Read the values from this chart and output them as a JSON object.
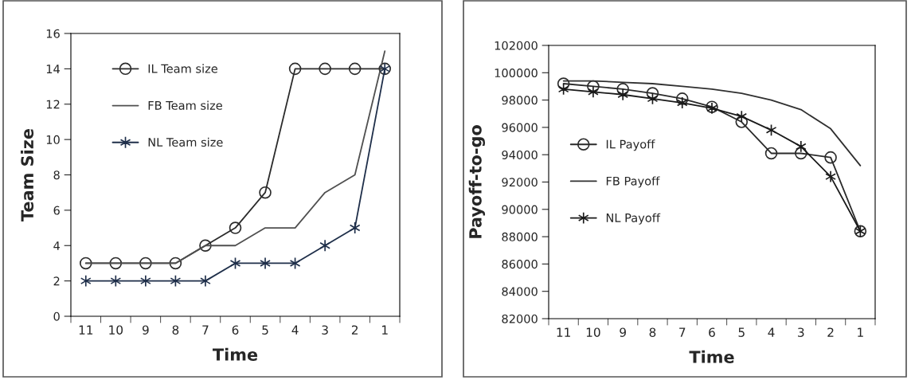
{
  "chart_data": [
    {
      "type": "line",
      "xlabel": "Time",
      "ylabel": "Team Size",
      "categories": [
        "11",
        "10",
        "9",
        "8",
        "7",
        "6",
        "5",
        "4",
        "3",
        "2",
        "1"
      ],
      "ylim": [
        0,
        16
      ],
      "yticks": [
        0,
        2,
        4,
        6,
        8,
        10,
        12,
        14,
        16
      ],
      "grid": false,
      "legend": "top left",
      "series": [
        {
          "name": "IL Team size",
          "color": "#2b2b2b",
          "marker": "circle",
          "values": [
            3,
            3,
            3,
            3,
            4,
            5,
            7,
            14,
            14,
            14,
            14
          ]
        },
        {
          "name": "FB Team size",
          "color": "#505050",
          "marker": "none",
          "values": [
            3,
            3,
            3,
            3,
            4,
            4,
            5,
            5,
            7,
            8,
            15
          ]
        },
        {
          "name": "NL Team size",
          "color": "#1f2f4a",
          "marker": "cross",
          "values": [
            2,
            2,
            2,
            2,
            2,
            3,
            3,
            3,
            4,
            5,
            14
          ]
        }
      ]
    },
    {
      "type": "line",
      "xlabel": "Time",
      "ylabel": "Payoff-to-go",
      "categories": [
        "11",
        "10",
        "9",
        "8",
        "7",
        "6",
        "5",
        "4",
        "3",
        "2",
        "1"
      ],
      "ylim": [
        82000,
        102000
      ],
      "yticks": [
        82000,
        84000,
        86000,
        88000,
        90000,
        92000,
        94000,
        96000,
        98000,
        100000,
        102000
      ],
      "grid": false,
      "legend": "left",
      "series": [
        {
          "name": "IL Payoff",
          "color": "#2b2b2b",
          "marker": "circle",
          "values": [
            99200,
            99000,
            98800,
            98500,
            98100,
            97500,
            96400,
            94100,
            94100,
            93800,
            88400
          ]
        },
        {
          "name": "FB Payoff",
          "color": "#303030",
          "marker": "none",
          "values": [
            99400,
            99400,
            99300,
            99200,
            99000,
            98800,
            98500,
            98000,
            97300,
            95900,
            93200
          ]
        },
        {
          "name": "NL Payoff",
          "color": "#1a1a1a",
          "marker": "cross",
          "values": [
            98800,
            98600,
            98400,
            98100,
            97800,
            97400,
            96800,
            95800,
            94600,
            92400,
            88400
          ]
        }
      ]
    }
  ]
}
